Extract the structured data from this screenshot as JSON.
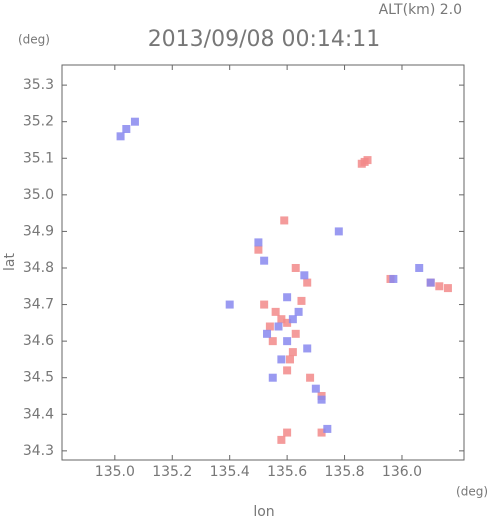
{
  "chart_data": {
    "type": "scatter",
    "title": "2013/09/08 00:14:11",
    "annotation": "ALT(km)  2.0",
    "xlabel": "lon",
    "ylabel": "lat",
    "xunit": "(deg)",
    "yunit": "(deg)",
    "xlim": [
      134.816,
      136.216
    ],
    "ylim": [
      34.275,
      35.355
    ],
    "xticks": [
      {
        "value": 135,
        "label": "135.0"
      },
      135.2,
      135.4,
      135.6,
      135.8,
      {
        "value": 136,
        "label": "136.0"
      }
    ],
    "yticks": [
      34.3,
      34.4,
      34.5,
      34.6,
      34.7,
      34.8,
      34.9,
      {
        "value": 35,
        "label": "35.0"
      },
      35.1,
      35.2,
      35.3
    ],
    "series": [
      {
        "color": "#f28a8a",
        "x": [
          135.87,
          135.86,
          135.88,
          135.59,
          135.5,
          135.63,
          135.67,
          136.1,
          136.13,
          136.16,
          135.52,
          135.56,
          135.6,
          135.63,
          135.55,
          135.62,
          135.6,
          135.68,
          135.72,
          135.6,
          135.58,
          135.72,
          135.96,
          135.58,
          135.65,
          135.54,
          135.61
        ],
        "values": [
          35.09,
          35.085,
          35.095,
          34.93,
          34.85,
          34.8,
          34.76,
          34.76,
          34.75,
          34.745,
          34.7,
          34.68,
          34.65,
          34.62,
          34.6,
          34.57,
          34.52,
          34.5,
          34.45,
          34.35,
          34.33,
          34.35,
          34.77,
          34.66,
          34.71,
          34.64,
          34.55
        ]
      },
      {
        "color": "#8888ee",
        "x": [
          135.04,
          135.07,
          135.02,
          135.5,
          135.52,
          135.66,
          135.6,
          135.64,
          135.57,
          135.6,
          135.58,
          135.55,
          135.7,
          135.72,
          135.74,
          135.97,
          136.1,
          136.06,
          135.78,
          135.4,
          135.62,
          135.53,
          135.67
        ],
        "values": [
          35.18,
          35.2,
          35.16,
          34.87,
          34.82,
          34.78,
          34.72,
          34.68,
          34.64,
          34.6,
          34.55,
          34.5,
          34.47,
          34.44,
          34.36,
          34.77,
          34.76,
          34.8,
          34.9,
          34.7,
          34.66,
          34.62,
          34.58
        ]
      }
    ]
  }
}
